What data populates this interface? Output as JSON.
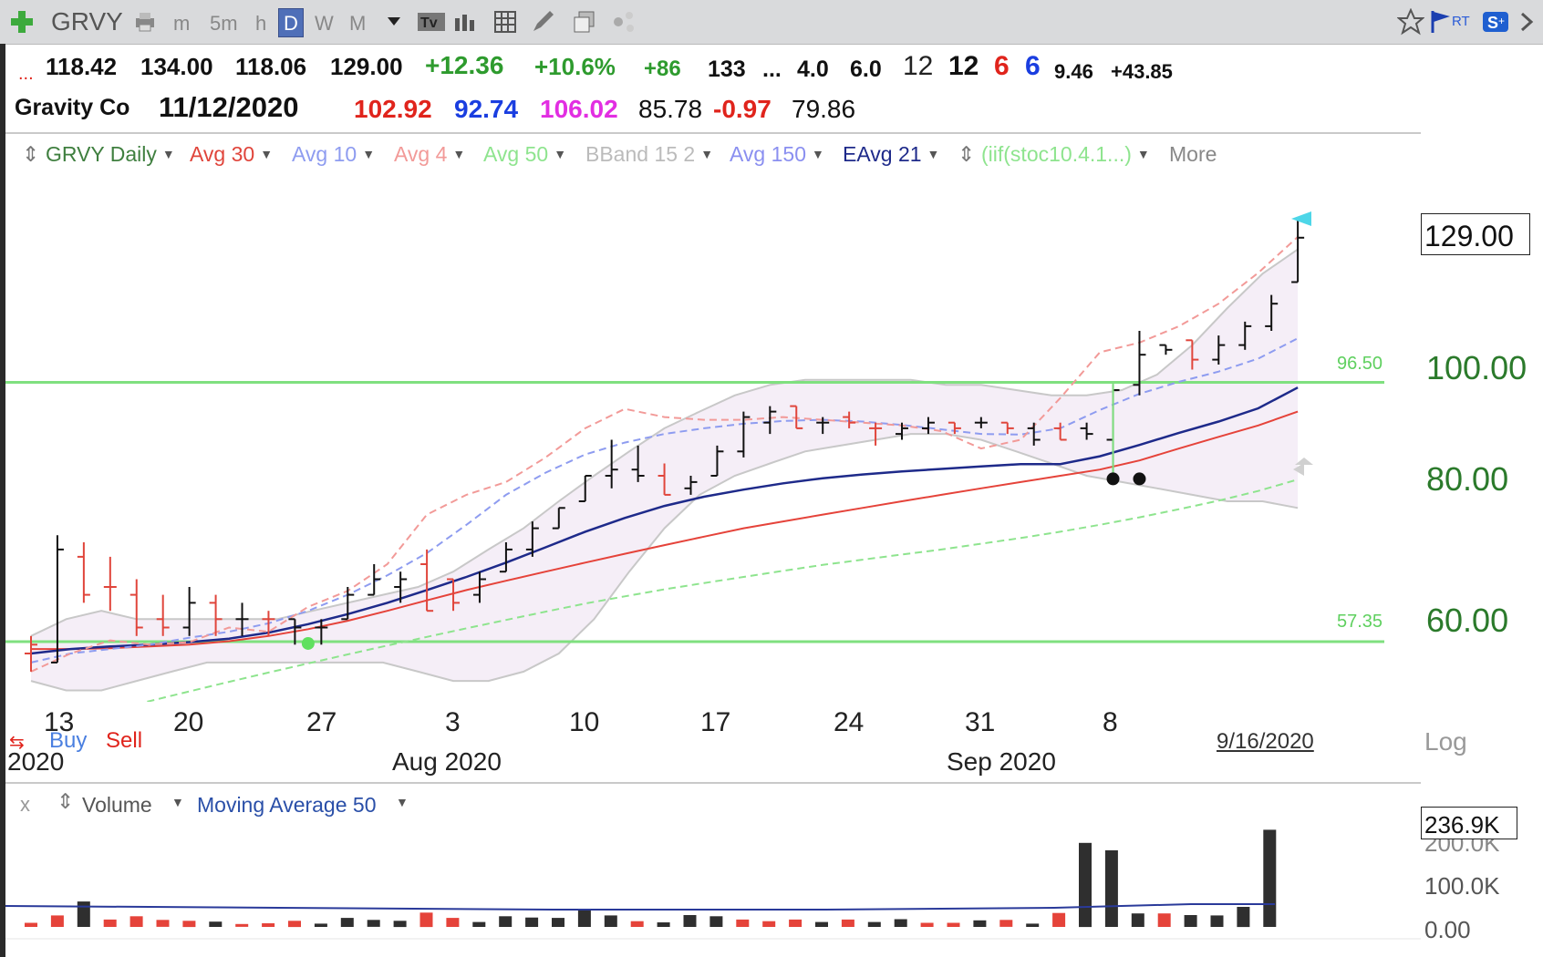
{
  "toolbar": {
    "symbol": "GRVY",
    "intervals": [
      "m",
      "5m",
      "h",
      "D",
      "W",
      "M"
    ],
    "selected_interval": "D"
  },
  "quote": {
    "lead": "...",
    "open": "118.42",
    "high": "134.00",
    "low": "118.06",
    "close": "129.00",
    "change": "+12.36",
    "change_pct": "+10.6%",
    "rank_change": "+86",
    "rank": "133",
    "ellipsis": "...",
    "v1": "4.0",
    "v2": "6.0",
    "n1": "12",
    "n2": "12",
    "n3": "6",
    "n4": "6",
    "v3": "9.46",
    "v4": "+43.85",
    "company": "Gravity Co",
    "date": "11/12/2020",
    "q1": "102.92",
    "q2": "92.74",
    "q3": "106.02",
    "q4": "85.78",
    "q5": "-0.97",
    "q6": "79.86"
  },
  "colors": {
    "up_green": "#2e9b2e",
    "red": "#e0241c",
    "blue": "#1a3ee0",
    "magenta": "#e22ee2",
    "green_line": "#7fe07f",
    "ema_navy": "#1e2a8a",
    "avg30_red": "#e5433a",
    "avg10_blue": "#8e9cf0",
    "avg4_pink": "#f29a98",
    "avg50_green": "#8ee48e",
    "bband_gray": "#c8c8c8",
    "axis_green": "#2b7a2b"
  },
  "legend": {
    "items": [
      {
        "label": "GRVY Daily",
        "color": "#3f7f3f"
      },
      {
        "label": "Avg 30",
        "color": "#e0453b"
      },
      {
        "label": "Avg 10",
        "color": "#8e9cf0"
      },
      {
        "label": "Avg 4",
        "color": "#f29a98"
      },
      {
        "label": "Avg 50",
        "color": "#8ee48e"
      },
      {
        "label": "BBand 15 2",
        "color": "#bbbbbb"
      },
      {
        "label": "Avg 150",
        "color": "#8a8ff0"
      },
      {
        "label": "EAvg 21",
        "color": "#1e2a8a"
      },
      {
        "label": "(iif(stoc10.4.1...)",
        "color": "#8ee48e"
      }
    ],
    "more": "More"
  },
  "price_pane": {
    "last_price_label": "129.00",
    "axis_ticks": [
      "100.00",
      "80.00",
      "60.00"
    ],
    "line_labels": [
      "96.50",
      "57.35"
    ],
    "buy": "Buy",
    "sell": "Sell",
    "x_ticks": [
      "13",
      "20",
      "27",
      "3",
      "10",
      "17",
      "24",
      "31",
      "8"
    ],
    "x_months": [
      "2020",
      "Aug 2020",
      "Sep 2020"
    ],
    "last_date": "9/16/2020",
    "scale": "Log"
  },
  "volume_pane": {
    "close": "x",
    "label": "Volume",
    "ma_label": "Moving Average 50",
    "last_label": "236.9K",
    "axis_ticks": [
      "200.0K",
      "100.0K",
      "0.00"
    ]
  },
  "chart_data": [
    {
      "type": "ohlc-bar",
      "symbol": "GRVY",
      "x_axis_dates": [
        "13",
        "20",
        "27",
        "3",
        "10",
        "17",
        "24",
        "31",
        "8"
      ],
      "y_axis_ticks": [
        60,
        80,
        100
      ],
      "y_scale": "log",
      "horizontal_lines": [
        96.5,
        57.35
      ],
      "last_price": 129.0,
      "series": [
        {
          "name": "Avg 30",
          "values": [
            56.5,
            56.5,
            56.6,
            56.8,
            57.0,
            57.4,
            58.0,
            58.8,
            59.8,
            61.0,
            62.3,
            63.6,
            64.8,
            66.0,
            67.2,
            68.4,
            69.6,
            70.8,
            72.0,
            73.0,
            74.0,
            75.0,
            76.0,
            77.0,
            78.0,
            79.0,
            80.0,
            81.0,
            82.5,
            84.5,
            86.5,
            88.5,
            91.0
          ]
        },
        {
          "name": "EAvg 21",
          "values": [
            56.0,
            56.5,
            56.8,
            57.0,
            57.3,
            57.7,
            58.4,
            59.4,
            60.6,
            62.0,
            63.6,
            65.3,
            67.2,
            69.3,
            71.5,
            73.5,
            75.3,
            76.7,
            77.8,
            78.8,
            79.6,
            80.2,
            80.7,
            81.1,
            81.5,
            81.9,
            81.9,
            83.2,
            85.1,
            87.2,
            89.2,
            91.6,
            95.5
          ]
        },
        {
          "name": "Avg 10",
          "values": [
            55.0,
            56.0,
            56.5,
            57.0,
            57.8,
            58.5,
            59.5,
            61.0,
            63.0,
            65.5,
            68.5,
            72.5,
            77.0,
            80.5,
            83.5,
            85.5,
            87.0,
            88.0,
            88.8,
            89.3,
            89.5,
            89.2,
            88.6,
            87.8,
            87.0,
            86.9,
            88.0,
            91.3,
            94.3,
            96.6,
            98.6,
            101.2,
            105.4
          ]
        },
        {
          "name": "Avg 4",
          "values": [
            54.0,
            56.0,
            57.5,
            57.0,
            57.3,
            59.0,
            58.5,
            61.5,
            63.5,
            67.0,
            74.0,
            77.0,
            79.0,
            83.0,
            88.0,
            91.5,
            90.0,
            89.5,
            89.5,
            90.0,
            89.5,
            89.0,
            88.5,
            87.5,
            84.5,
            86.0,
            93.5,
            102.5,
            104.5,
            108.0,
            113.0,
            120.2,
            129.2
          ]
        },
        {
          "name": "Avg 50",
          "values": [
            48.5,
            49.2,
            50.0,
            50.9,
            51.9,
            52.9,
            53.9,
            54.9,
            55.9,
            56.9,
            57.9,
            58.9,
            59.9,
            60.9,
            61.9,
            62.8,
            63.7,
            64.5,
            65.3,
            66.1,
            66.9,
            67.6,
            68.3,
            69.0,
            69.8,
            70.6,
            71.5,
            72.5,
            73.6,
            74.8,
            76.1,
            77.6,
            79.4
          ]
        }
      ]
    },
    {
      "type": "bar",
      "name": "Volume",
      "y_axis_ticks": [
        0,
        100000,
        200000
      ],
      "last_value": 236900,
      "bars": [
        {
          "v": 10000,
          "c": "down"
        },
        {
          "v": 28000,
          "c": "down"
        },
        {
          "v": 62000,
          "c": "up"
        },
        {
          "v": 18000,
          "c": "down"
        },
        {
          "v": 26000,
          "c": "down"
        },
        {
          "v": 17000,
          "c": "down"
        },
        {
          "v": 15000,
          "c": "down"
        },
        {
          "v": 13000,
          "c": "up"
        },
        {
          "v": 7000,
          "c": "down"
        },
        {
          "v": 9000,
          "c": "down"
        },
        {
          "v": 15000,
          "c": "down"
        },
        {
          "v": 8000,
          "c": "up"
        },
        {
          "v": 22000,
          "c": "up"
        },
        {
          "v": 17000,
          "c": "up"
        },
        {
          "v": 15000,
          "c": "up"
        },
        {
          "v": 35000,
          "c": "down"
        },
        {
          "v": 22000,
          "c": "down"
        },
        {
          "v": 12000,
          "c": "up"
        },
        {
          "v": 26000,
          "c": "up"
        },
        {
          "v": 23000,
          "c": "up"
        },
        {
          "v": 22000,
          "c": "up"
        },
        {
          "v": 43000,
          "c": "up"
        },
        {
          "v": 28000,
          "c": "up"
        },
        {
          "v": 14000,
          "c": "down"
        },
        {
          "v": 11000,
          "c": "up"
        },
        {
          "v": 29000,
          "c": "up"
        },
        {
          "v": 26000,
          "c": "up"
        },
        {
          "v": 18000,
          "c": "down"
        },
        {
          "v": 14000,
          "c": "down"
        },
        {
          "v": 18000,
          "c": "down"
        },
        {
          "v": 12000,
          "c": "up"
        },
        {
          "v": 18000,
          "c": "down"
        },
        {
          "v": 12000,
          "c": "up"
        },
        {
          "v": 19000,
          "c": "up"
        },
        {
          "v": 10000,
          "c": "down"
        },
        {
          "v": 10000,
          "c": "down"
        },
        {
          "v": 16000,
          "c": "up"
        },
        {
          "v": 17000,
          "c": "down"
        },
        {
          "v": 8000,
          "c": "up"
        },
        {
          "v": 34000,
          "c": "down"
        },
        {
          "v": 205000,
          "c": "up"
        },
        {
          "v": 187000,
          "c": "up"
        },
        {
          "v": 33000,
          "c": "up"
        },
        {
          "v": 33000,
          "c": "down"
        },
        {
          "v": 29000,
          "c": "up"
        },
        {
          "v": 28000,
          "c": "up"
        },
        {
          "v": 49000,
          "c": "up"
        },
        {
          "v": 236900,
          "c": "up"
        }
      ]
    }
  ]
}
